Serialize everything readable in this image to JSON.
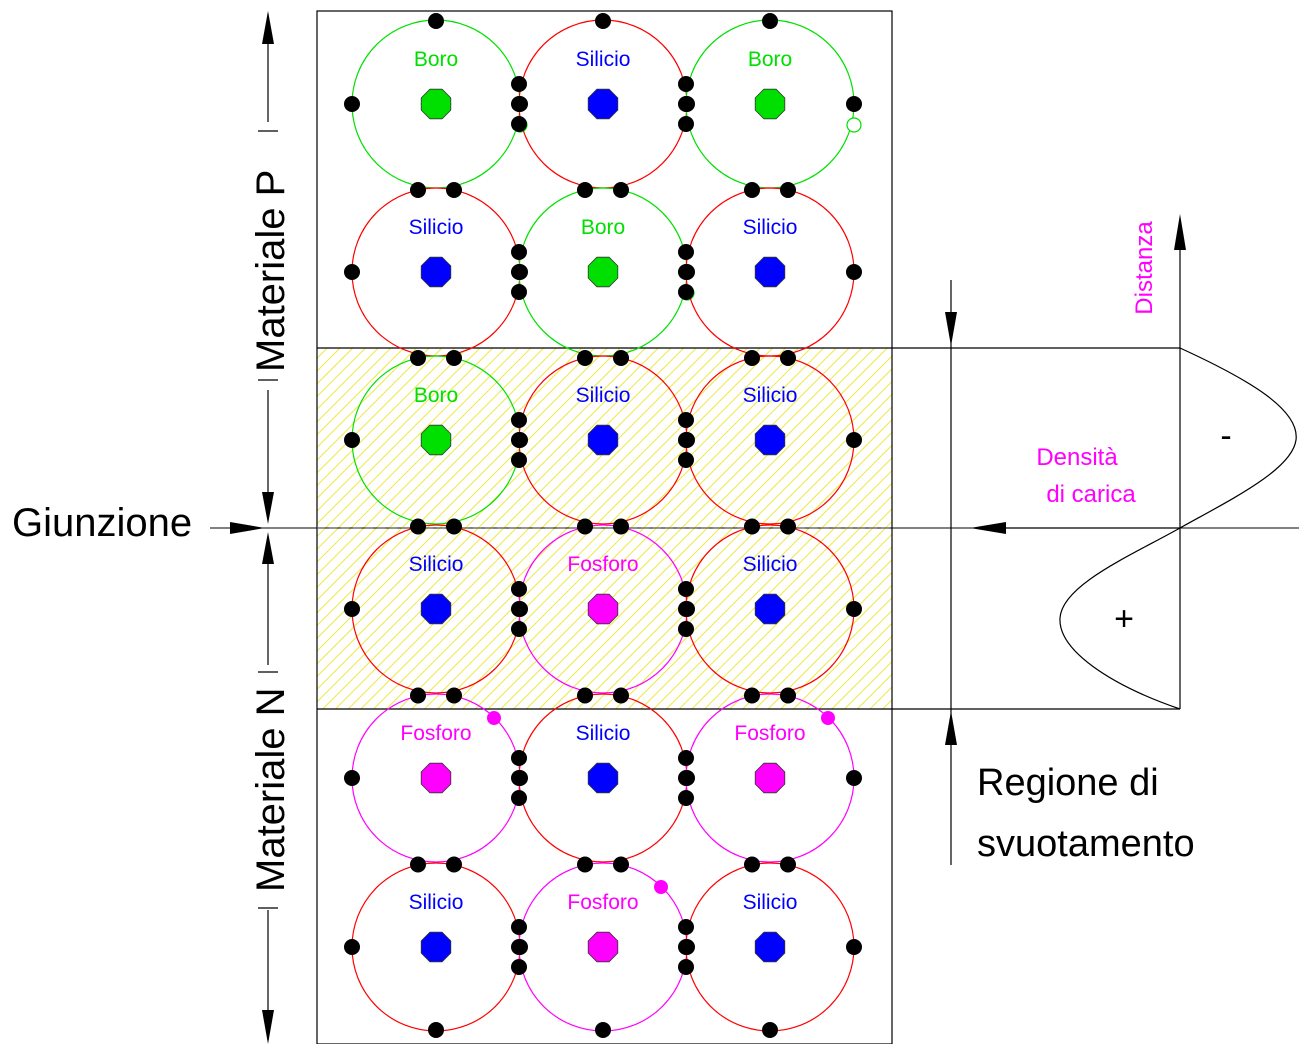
{
  "colors": {
    "boron": "#00e000",
    "silicon": "#0000ff",
    "phosphorus": "#ff00ff",
    "silicon_orbit": "#ff0000",
    "electron": "#000000",
    "depletion_fill": "#ffff00",
    "label_magenta": "#ff00ff"
  },
  "lattice": {
    "rows": [
      [
        "Boro",
        "Silicio",
        "Boro"
      ],
      [
        "Silicio",
        "Boro",
        "Silicio"
      ],
      [
        "Boro",
        "Silicio",
        "Silicio"
      ],
      [
        "Silicio",
        "Fosforo",
        "Silicio"
      ],
      [
        "Fosforo",
        "Silicio",
        "Fosforo"
      ],
      [
        "Silicio",
        "Fosforo",
        "Silicio"
      ]
    ]
  },
  "labels": {
    "material_p": "Materiale P",
    "material_n": "Materiale N",
    "junction": "Giunzione",
    "depletion_line1": "Regione di",
    "depletion_line2": "svuotamento",
    "distance": "Distanza",
    "charge_density_line1": "Densità",
    "charge_density_line2": "di carica",
    "negative_sign": "-",
    "positive_sign": "+"
  }
}
